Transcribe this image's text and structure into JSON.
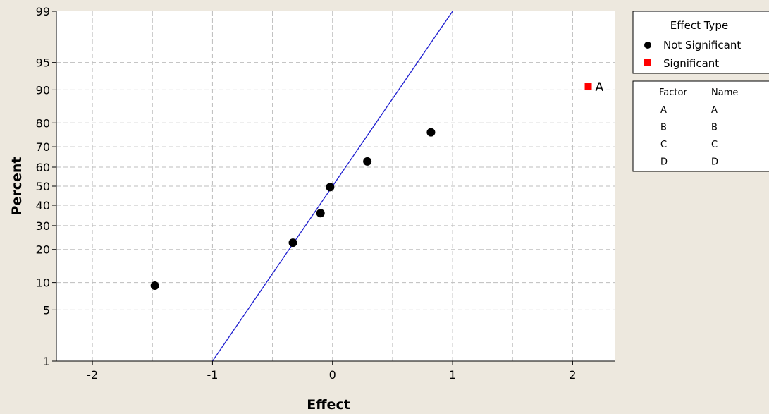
{
  "chart_data": {
    "type": "scatter",
    "title": "",
    "xlabel": "Effect",
    "ylabel": "Percent",
    "xlim": [
      -2.3,
      2.35
    ],
    "y_scale": "normal-probability",
    "ylim_percent": [
      1,
      99
    ],
    "x_ticks": [
      -2,
      -1,
      0,
      1,
      2
    ],
    "y_ticks": [
      1,
      5,
      10,
      20,
      30,
      40,
      50,
      60,
      70,
      80,
      90,
      95,
      99
    ],
    "grid": true,
    "reference_line": {
      "x": [
        -1.0,
        1.0
      ],
      "y_percent": [
        1,
        99
      ],
      "color": "#1F1FD0"
    },
    "series": [
      {
        "name": "Not Significant",
        "marker": "circle",
        "color": "#000000",
        "points": [
          {
            "x": -1.48,
            "y": 9.3
          },
          {
            "x": -0.33,
            "y": 22.6
          },
          {
            "x": -0.1,
            "y": 36.0
          },
          {
            "x": -0.02,
            "y": 49.5
          },
          {
            "x": 0.29,
            "y": 62.9
          },
          {
            "x": 0.82,
            "y": 76.3
          }
        ]
      },
      {
        "name": "Significant",
        "marker": "square",
        "color": "#FF0000",
        "points": [
          {
            "x": 2.13,
            "y": 90.7,
            "label": "A"
          }
        ]
      }
    ],
    "legend": {
      "position": "right",
      "title": "Effect Type",
      "entries": [
        {
          "label": "Not Significant",
          "marker": "circle",
          "color": "#000000"
        },
        {
          "label": "Significant",
          "marker": "square",
          "color": "#FF0000"
        }
      ]
    },
    "factor_table": {
      "headers": [
        "Factor",
        "Name"
      ],
      "rows": [
        [
          "A",
          "A"
        ],
        [
          "B",
          "B"
        ],
        [
          "C",
          "C"
        ],
        [
          "D",
          "D"
        ]
      ]
    }
  }
}
